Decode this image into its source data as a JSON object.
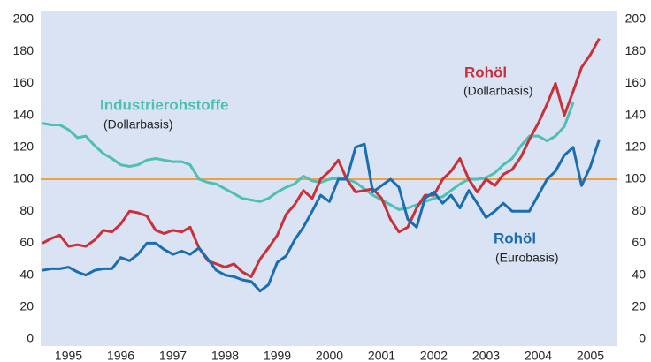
{
  "chart_data": {
    "type": "line",
    "x": [
      1995,
      1995.17,
      1995.33,
      1995.5,
      1995.67,
      1995.83,
      1996,
      1996.17,
      1996.33,
      1996.5,
      1996.67,
      1996.83,
      1997,
      1997.17,
      1997.33,
      1997.5,
      1997.67,
      1997.83,
      1998,
      1998.17,
      1998.33,
      1998.5,
      1998.67,
      1998.83,
      1999,
      1999.17,
      1999.33,
      1999.5,
      1999.67,
      1999.83,
      2000,
      2000.17,
      2000.33,
      2000.5,
      2000.67,
      2000.83,
      2001,
      2001.17,
      2001.33,
      2001.5,
      2001.67,
      2001.83,
      2002,
      2002.17,
      2002.33,
      2002.5,
      2002.67,
      2002.83,
      2003,
      2003.17,
      2003.33,
      2003.5,
      2003.67,
      2003.83,
      2004,
      2004.17,
      2004.33,
      2004.5,
      2004.67,
      2004.83,
      2005,
      2005.17,
      2005.33,
      2005.5,
      2005.67
    ],
    "series": [
      {
        "name": "Industrierohstoffe",
        "note_label": "(Dollarbasis)",
        "color": "#4dbfb4",
        "values": [
          135,
          134,
          134,
          131,
          126,
          127,
          121,
          116,
          113,
          109,
          108,
          109,
          112,
          113,
          112,
          111,
          111,
          109,
          100,
          98,
          97,
          94,
          91,
          88,
          87,
          86,
          88,
          92,
          95,
          97,
          102,
          99,
          98,
          100,
          101,
          100,
          98,
          94,
          90,
          87,
          84,
          81,
          82,
          84,
          86,
          88,
          89,
          93,
          97,
          100,
          100,
          101,
          104,
          109,
          113,
          121,
          127,
          127,
          124,
          127,
          133,
          148,
          null,
          null,
          null
        ]
      },
      {
        "name": "Rohöl",
        "note_label": "(Dollarbasis)",
        "color": "#c8303a",
        "values": [
          60,
          63,
          65,
          58,
          59,
          58,
          62,
          68,
          67,
          72,
          80,
          79,
          77,
          68,
          66,
          68,
          67,
          70,
          57,
          49,
          47,
          45,
          47,
          42,
          39,
          50,
          57,
          65,
          78,
          84,
          93,
          88,
          100,
          105,
          112,
          100,
          92,
          93,
          94,
          88,
          75,
          67,
          70,
          82,
          90,
          90,
          100,
          105,
          113,
          100,
          92,
          100,
          96,
          103,
          106,
          114,
          125,
          135,
          147,
          160,
          140,
          155,
          170,
          178,
          188
        ]
      },
      {
        "name": "Rohöl",
        "note_label": "(Eurobasis)",
        "color": "#1a6eb0",
        "values": [
          43,
          44,
          44,
          45,
          42,
          40,
          43,
          44,
          44,
          51,
          49,
          53,
          60,
          60,
          56,
          53,
          55,
          53,
          57,
          50,
          43,
          40,
          39,
          37,
          36,
          30,
          34,
          48,
          52,
          62,
          70,
          80,
          90,
          86,
          100,
          100,
          120,
          122,
          92,
          96,
          100,
          95,
          75,
          70,
          88,
          92,
          85,
          90,
          82,
          93,
          85,
          76,
          80,
          85,
          80,
          80,
          80,
          90,
          100,
          105,
          115,
          120,
          96,
          108,
          125
        ]
      }
    ],
    "reference_line": {
      "value": 100,
      "color": "#f0a040"
    },
    "xlim": [
      1995,
      2006
    ],
    "xticks": [
      {
        "value": 1995.5,
        "label": "1995"
      },
      {
        "value": 1996.5,
        "label": "1996"
      },
      {
        "value": 1997.5,
        "label": "1997"
      },
      {
        "value": 1998.5,
        "label": "1998"
      },
      {
        "value": 1999.5,
        "label": "1999"
      },
      {
        "value": 2000.5,
        "label": "2000"
      },
      {
        "value": 2001.5,
        "label": "2001"
      },
      {
        "value": 2002.5,
        "label": "2002"
      },
      {
        "value": 2003.5,
        "label": "2003"
      },
      {
        "value": 2004.5,
        "label": "2004"
      },
      {
        "value": 2005.5,
        "label": "2005"
      }
    ],
    "ylim": [
      0,
      200
    ],
    "yticks": [
      0,
      20,
      40,
      60,
      80,
      100,
      120,
      140,
      160,
      180,
      200
    ],
    "y2lim": [
      0,
      200
    ],
    "y2ticks": [
      0,
      20,
      40,
      60,
      80,
      100,
      120,
      140,
      160,
      180,
      200
    ],
    "grid": false
  }
}
